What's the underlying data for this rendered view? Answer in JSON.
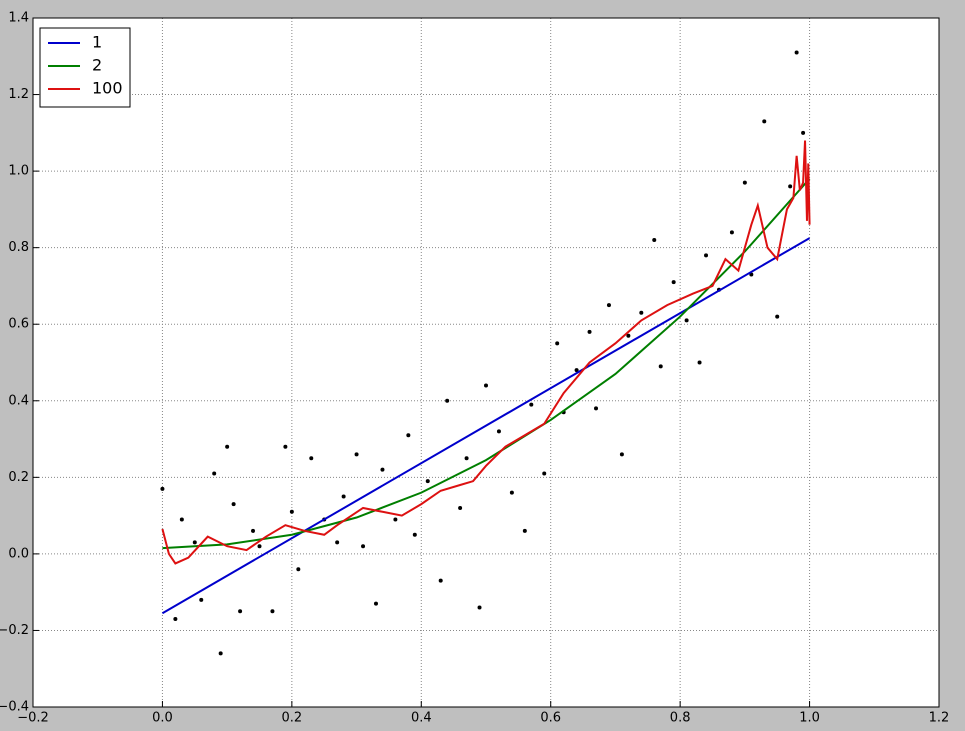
{
  "chart_data": {
    "type": "line",
    "xlim": [
      -0.2,
      1.2
    ],
    "ylim": [
      -0.4,
      1.4
    ],
    "xticks": [
      {
        "value": -0.2,
        "label": "−0.2"
      },
      {
        "value": 0,
        "label": "0.0"
      },
      0.2,
      0.4,
      0.6,
      0.8,
      {
        "value": 1,
        "label": "1.0"
      },
      1.2
    ],
    "yticks": [
      {
        "value": -0.4,
        "label": "−0.4"
      },
      {
        "value": -0.2,
        "label": "−0.2"
      },
      {
        "value": 0,
        "label": "0.0"
      },
      0.2,
      0.4,
      0.6,
      0.8,
      {
        "value": 1,
        "label": "1.0"
      },
      1.2,
      1.4
    ],
    "grid": true,
    "legend": "upper-left",
    "points": {
      "color": "#000000",
      "x": [
        0.0,
        0.02,
        0.03,
        0.05,
        0.06,
        0.08,
        0.09,
        0.1,
        0.11,
        0.12,
        0.14,
        0.15,
        0.17,
        0.19,
        0.2,
        0.21,
        0.23,
        0.25,
        0.27,
        0.28,
        0.3,
        0.31,
        0.33,
        0.34,
        0.36,
        0.38,
        0.39,
        0.41,
        0.43,
        0.44,
        0.46,
        0.47,
        0.49,
        0.5,
        0.52,
        0.54,
        0.56,
        0.57,
        0.59,
        0.61,
        0.62,
        0.64,
        0.66,
        0.67,
        0.69,
        0.71,
        0.72,
        0.74,
        0.76,
        0.77,
        0.79,
        0.81,
        0.83,
        0.84,
        0.86,
        0.88,
        0.9,
        0.91,
        0.93,
        0.95,
        0.97,
        0.98,
        0.99
      ],
      "values": [
        0.17,
        -0.17,
        0.09,
        0.03,
        -0.12,
        0.21,
        -0.26,
        0.28,
        0.13,
        -0.15,
        0.06,
        0.02,
        -0.15,
        0.28,
        0.11,
        -0.04,
        0.25,
        0.09,
        0.03,
        0.15,
        0.26,
        0.02,
        -0.13,
        0.22,
        0.09,
        0.31,
        0.05,
        0.19,
        -0.07,
        0.4,
        0.12,
        0.25,
        -0.14,
        0.44,
        0.32,
        0.16,
        0.06,
        0.39,
        0.21,
        0.55,
        0.37,
        0.48,
        0.58,
        0.38,
        0.65,
        0.26,
        0.57,
        0.63,
        0.82,
        0.49,
        0.71,
        0.61,
        0.5,
        0.78,
        0.69,
        0.84,
        0.97,
        0.73,
        1.13,
        0.62,
        0.96,
        1.31,
        1.1
      ]
    },
    "series": [
      {
        "name": "1",
        "color": "#0000cc",
        "x": [
          0,
          1
        ],
        "values": [
          -0.155,
          0.825
        ]
      },
      {
        "name": "2",
        "color": "#007f00",
        "x": [
          0,
          0.1,
          0.2,
          0.3,
          0.4,
          0.5,
          0.6,
          0.7,
          0.8,
          0.9,
          1.0
        ],
        "values": [
          0.015,
          0.025,
          0.05,
          0.095,
          0.16,
          0.245,
          0.35,
          0.47,
          0.62,
          0.79,
          0.98
        ]
      },
      {
        "name": "100",
        "color": "#dd1111",
        "x": [
          0,
          0.01,
          0.02,
          0.04,
          0.07,
          0.1,
          0.13,
          0.16,
          0.19,
          0.22,
          0.25,
          0.27,
          0.31,
          0.34,
          0.37,
          0.4,
          0.43,
          0.46,
          0.48,
          0.5,
          0.53,
          0.56,
          0.59,
          0.62,
          0.66,
          0.7,
          0.74,
          0.78,
          0.82,
          0.85,
          0.87,
          0.89,
          0.91,
          0.92,
          0.935,
          0.95,
          0.965,
          0.975,
          0.98,
          0.985,
          0.99,
          0.993,
          0.996,
          0.998,
          1.0
        ],
        "values": [
          0.065,
          0.0,
          -0.025,
          -0.01,
          0.045,
          0.02,
          0.01,
          0.045,
          0.075,
          0.06,
          0.05,
          0.075,
          0.12,
          0.11,
          0.1,
          0.13,
          0.165,
          0.18,
          0.19,
          0.23,
          0.28,
          0.31,
          0.34,
          0.42,
          0.5,
          0.55,
          0.61,
          0.65,
          0.68,
          0.7,
          0.77,
          0.74,
          0.86,
          0.91,
          0.8,
          0.77,
          0.9,
          0.93,
          1.04,
          0.95,
          0.97,
          1.08,
          0.87,
          1.02,
          0.86
        ]
      }
    ]
  }
}
